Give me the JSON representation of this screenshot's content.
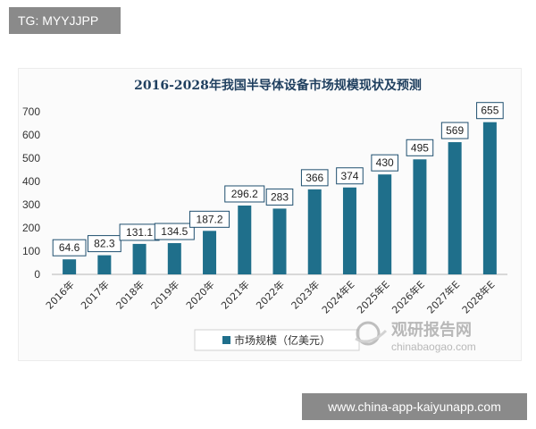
{
  "tag": "TG: MYYJJPP",
  "footer_url": "www.china-app-kaiyunapp.com",
  "watermark": {
    "brand": "观研报告网",
    "domain": "chinabaogao.com"
  },
  "colors": {
    "bar": "#1f6f8b",
    "title": "#1f3f5f",
    "label_border": "#1f4f6f"
  },
  "chart_data": {
    "type": "bar",
    "title": "2016-2028年我国半导体设备市场规模现状及预测",
    "categories": [
      "2016年",
      "2017年",
      "2018年",
      "2019年",
      "2020年",
      "2021年",
      "2022年",
      "2023年",
      "2024年E",
      "2025年E",
      "2026年E",
      "2027年E",
      "2028年E"
    ],
    "series": [
      {
        "name": "市场规模（亿美元）",
        "values": [
          64.6,
          82.3,
          131.1,
          134.5,
          187.2,
          296.2,
          283,
          366,
          374,
          430,
          495,
          569,
          655
        ]
      }
    ],
    "data_labels": [
      "64.6",
      "82.3",
      "131.1",
      "134.5",
      "187.2",
      "296.2",
      "283",
      "366",
      "374",
      "430",
      "495",
      "569",
      "655"
    ],
    "ylim": [
      0,
      700
    ],
    "yticks": [
      "0",
      "100",
      "200",
      "300",
      "400",
      "500",
      "600",
      "700"
    ],
    "xlabel": "",
    "ylabel": "",
    "grid": false,
    "legend_position": "bottom-center"
  }
}
